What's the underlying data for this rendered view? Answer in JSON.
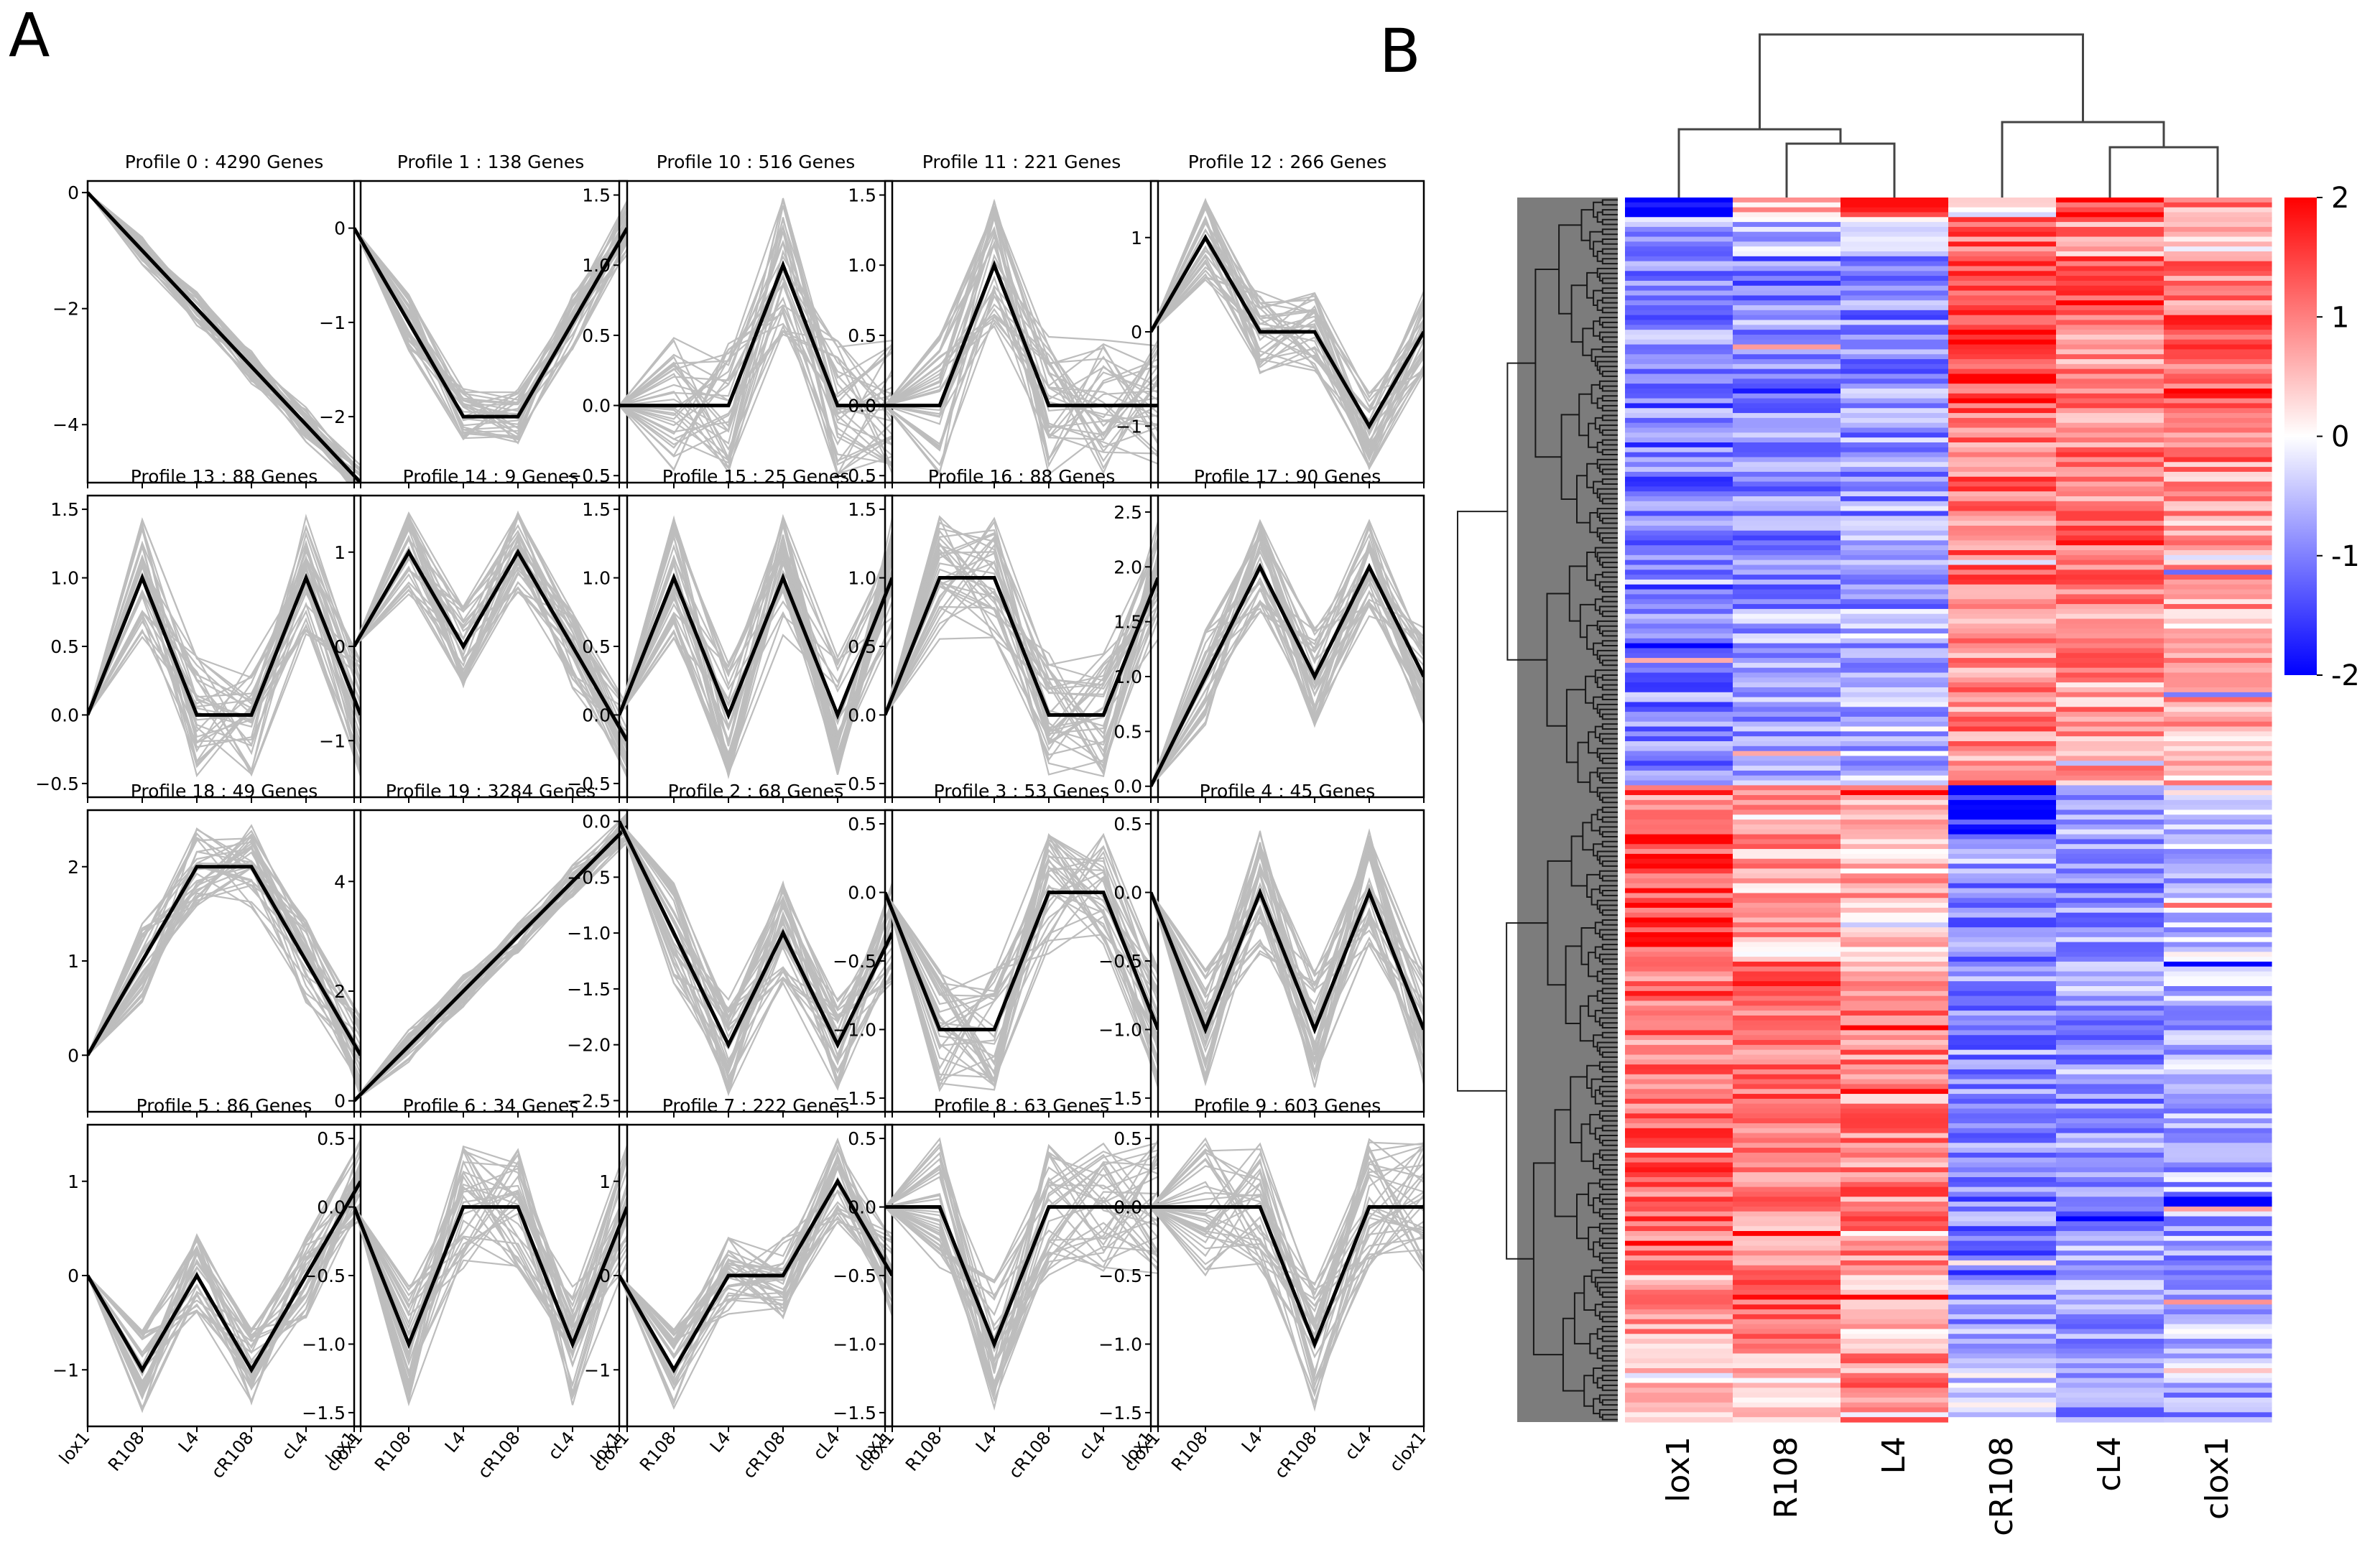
{
  "panel_labels": {
    "a": "A",
    "b": "B"
  },
  "chart_data": [
    {
      "type": "line",
      "panel": "A",
      "x": [
        "lox1",
        "R108",
        "L4",
        "cR108",
        "cL4",
        "clox1"
      ],
      "profiles": [
        {
          "title": "Profile 0 : 4290 Genes",
          "values": [
            0,
            -1,
            -2,
            -3,
            -4,
            -5
          ],
          "ylim": [
            -5,
            0.2
          ],
          "yticks": [
            0,
            -2,
            -4
          ],
          "yticklabels": [
            "0",
            "−2",
            "−4"
          ],
          "spread": 0.3
        },
        {
          "title": "Profile 1 : 138 Genes",
          "values": [
            0,
            -1,
            -2,
            -2,
            -1,
            0
          ],
          "ylim": [
            -2.7,
            0.5
          ],
          "yticks": [
            0,
            -1,
            -2
          ],
          "yticklabels": [
            "0",
            "−1",
            "−2"
          ],
          "spread": 0.3
        },
        {
          "title": "Profile 10 : 516 Genes",
          "values": [
            0,
            0,
            0,
            1,
            0,
            0
          ],
          "ylim": [
            -0.55,
            1.6
          ],
          "yticks": [
            1.5,
            1.0,
            0.5,
            0.0,
            -0.5
          ],
          "yticklabels": [
            "1.5",
            "1.0",
            "0.5",
            "0.0",
            "−0.5"
          ],
          "spread": 0.5
        },
        {
          "title": "Profile 11 : 221 Genes",
          "values": [
            0,
            0,
            1,
            0,
            0,
            0
          ],
          "ylim": [
            -0.55,
            1.6
          ],
          "yticks": [
            1.5,
            1.0,
            0.5,
            0.0,
            -0.5
          ],
          "yticklabels": [
            "1.5",
            "1.0",
            "0.5",
            "0.0",
            "−0.5"
          ],
          "spread": 0.5
        },
        {
          "title": "Profile 12 : 266 Genes",
          "values": [
            0,
            1,
            0,
            0,
            -1,
            0
          ],
          "ylim": [
            -1.6,
            1.6
          ],
          "yticks": [
            1,
            0,
            -1
          ],
          "yticklabels": [
            "1",
            "0",
            "−1"
          ],
          "spread": 0.45
        },
        {
          "title": "Profile 13 : 88 Genes",
          "values": [
            0,
            1,
            0,
            0,
            1,
            0
          ],
          "ylim": [
            -0.6,
            1.6
          ],
          "yticks": [
            1.5,
            1.0,
            0.5,
            0.0,
            -0.5
          ],
          "yticklabels": [
            "1.5",
            "1.0",
            "0.5",
            "0.0",
            "−0.5"
          ],
          "spread": 0.45
        },
        {
          "title": "Profile 14 : 9 Genes",
          "values": [
            0,
            1,
            0,
            1,
            0,
            -1
          ],
          "ylim": [
            -1.6,
            1.6
          ],
          "yticks": [
            1,
            0,
            -1
          ],
          "yticklabels": [
            "1",
            "0",
            "−1"
          ],
          "spread": 0.45
        },
        {
          "title": "Profile 15 : 25 Genes",
          "values": [
            0,
            1,
            0,
            1,
            0,
            1
          ],
          "ylim": [
            -0.6,
            1.6
          ],
          "yticks": [
            1.5,
            1.0,
            0.5,
            0.0,
            -0.5
          ],
          "yticklabels": [
            "1.5",
            "1.0",
            "0.5",
            "0.0",
            "−0.5"
          ],
          "spread": 0.45
        },
        {
          "title": "Profile 16 : 88 Genes",
          "values": [
            0,
            1,
            1,
            0,
            0,
            1
          ],
          "ylim": [
            -0.6,
            1.6
          ],
          "yticks": [
            1.5,
            1.0,
            0.5,
            0.0,
            -0.5
          ],
          "yticklabels": [
            "1.5",
            "1.0",
            "0.5",
            "0.0",
            "−0.5"
          ],
          "spread": 0.45
        },
        {
          "title": "Profile 17 : 90 Genes",
          "values": [
            0,
            1,
            2,
            1,
            2,
            1
          ],
          "ylim": [
            -0.1,
            2.65
          ],
          "yticks": [
            2.5,
            2.0,
            1.5,
            1.0,
            0.5,
            0.0
          ],
          "yticklabels": [
            "2.5",
            "2.0",
            "1.5",
            "1.0",
            "0.5",
            "0.0"
          ],
          "spread": 0.45
        },
        {
          "title": "Profile 18 : 49 Genes",
          "values": [
            0,
            1,
            2,
            2,
            1,
            0
          ],
          "ylim": [
            -0.6,
            2.6
          ],
          "yticks": [
            2,
            1,
            0
          ],
          "yticklabels": [
            "2",
            "1",
            "0"
          ],
          "spread": 0.45
        },
        {
          "title": "Profile 19 : 3284 Genes",
          "values": [
            0,
            1,
            2,
            3,
            4,
            5
          ],
          "ylim": [
            -0.2,
            5.3
          ],
          "yticks": [
            4,
            2,
            0
          ],
          "yticklabels": [
            "4",
            "2",
            "0"
          ],
          "spread": 0.3
        },
        {
          "title": "Profile 2 : 68 Genes",
          "values": [
            0,
            -1,
            -2,
            -1,
            -2,
            -1
          ],
          "ylim": [
            -2.6,
            0.1
          ],
          "yticks": [
            0.0,
            -0.5,
            -1.0,
            -1.5,
            -2.0,
            -2.5
          ],
          "yticklabels": [
            "0.0",
            "−0.5",
            "−1.0",
            "−1.5",
            "−2.0",
            "−2.5"
          ],
          "spread": 0.45
        },
        {
          "title": "Profile 3 : 53 Genes",
          "values": [
            0,
            -1,
            -1,
            0,
            0,
            -1
          ],
          "ylim": [
            -1.6,
            0.6
          ],
          "yticks": [
            0.5,
            0.0,
            -0.5,
            -1.0,
            -1.5
          ],
          "yticklabels": [
            "0.5",
            "0.0",
            "−0.5",
            "−1.0",
            "−1.5"
          ],
          "spread": 0.45
        },
        {
          "title": "Profile 4 : 45 Genes",
          "values": [
            0,
            -1,
            0,
            -1,
            0,
            -1
          ],
          "ylim": [
            -1.6,
            0.6
          ],
          "yticks": [
            0.5,
            0.0,
            -0.5,
            -1.0,
            -1.5
          ],
          "yticklabels": [
            "0.5",
            "0.0",
            "−0.5",
            "−1.0",
            "−1.5"
          ],
          "spread": 0.45
        },
        {
          "title": "Profile 5 : 86 Genes",
          "values": [
            0,
            -1,
            0,
            -1,
            0,
            1
          ],
          "ylim": [
            -1.6,
            1.6
          ],
          "yticks": [
            1,
            0,
            -1
          ],
          "yticklabels": [
            "1",
            "0",
            "−1"
          ],
          "spread": 0.45
        },
        {
          "title": "Profile 6 : 34 Genes",
          "values": [
            0,
            -1,
            0,
            0,
            -1,
            0
          ],
          "ylim": [
            -1.6,
            0.6
          ],
          "yticks": [
            0.5,
            0.0,
            -0.5,
            -1.0,
            -1.5
          ],
          "yticklabels": [
            "0.5",
            "0.0",
            "−0.5",
            "−1.0",
            "−1.5"
          ],
          "spread": 0.45
        },
        {
          "title": "Profile 7 : 222 Genes",
          "values": [
            0,
            -1,
            0,
            0,
            1,
            0
          ],
          "ylim": [
            -1.6,
            1.6
          ],
          "yticks": [
            1,
            0,
            -1
          ],
          "yticklabels": [
            "1",
            "0",
            "−1"
          ],
          "spread": 0.45
        },
        {
          "title": "Profile 8 : 63 Genes",
          "values": [
            0,
            0,
            -1,
            0,
            0,
            0
          ],
          "ylim": [
            -1.6,
            0.6
          ],
          "yticks": [
            0.5,
            0.0,
            -0.5,
            -1.0,
            -1.5
          ],
          "yticklabels": [
            "0.5",
            "0.0",
            "−0.5",
            "−1.0",
            "−1.5"
          ],
          "spread": 0.5
        },
        {
          "title": "Profile 9 : 603 Genes",
          "values": [
            0,
            0,
            0,
            -1,
            0,
            0
          ],
          "ylim": [
            -1.6,
            0.6
          ],
          "yticks": [
            0.5,
            0.0,
            -0.5,
            -1.0,
            -1.5
          ],
          "yticklabels": [
            "0.5",
            "0.0",
            "−0.5",
            "−1.0",
            "−1.5"
          ],
          "spread": 0.5
        }
      ]
    },
    {
      "type": "heatmap",
      "panel": "B",
      "columns": [
        "lox1",
        "R108",
        "L4",
        "cR108",
        "cL4",
        "clox1"
      ],
      "colorbar": {
        "ticks": [
          2,
          1,
          0,
          -1,
          -2
        ],
        "ticklabels": [
          "2",
          "1",
          "0",
          "-1",
          "-2"
        ],
        "range": [
          -2,
          2
        ],
        "low_color": "#0000ff",
        "mid_color": "#ffffff",
        "high_color": "#ff0000"
      },
      "row_blocks": [
        {
          "rows": 4,
          "values": [
            -2.0,
            0.6,
            1.8,
            0.3,
            1.5,
            0.8
          ]
        },
        {
          "rows": 8,
          "values": [
            -0.8,
            -0.6,
            -0.4,
            1.2,
            0.8,
            0.3
          ]
        },
        {
          "rows": 10,
          "values": [
            -0.9,
            -1.0,
            -0.8,
            1.4,
            1.6,
            0.9
          ]
        },
        {
          "rows": 22,
          "values": [
            -0.9,
            -0.8,
            -0.9,
            1.5,
            0.9,
            1.2
          ]
        },
        {
          "rows": 40,
          "values": [
            -1.1,
            -0.9,
            -0.8,
            1.1,
            1.0,
            0.8
          ]
        },
        {
          "rows": 36,
          "values": [
            -1.0,
            -0.7,
            -0.6,
            0.9,
            0.8,
            0.6
          ]
        },
        {
          "rows": 10,
          "values": [
            1.0,
            0.6,
            0.5,
            -1.8,
            -0.6,
            -0.3
          ]
        },
        {
          "rows": 26,
          "values": [
            1.5,
            0.7,
            0.6,
            -1.0,
            -0.9,
            -0.5
          ]
        },
        {
          "rows": 30,
          "values": [
            1.0,
            1.2,
            0.9,
            -0.9,
            -0.8,
            -0.6
          ]
        },
        {
          "rows": 34,
          "values": [
            1.2,
            0.9,
            1.0,
            -1.0,
            -0.8,
            -0.7
          ]
        },
        {
          "rows": 16,
          "values": [
            0.7,
            1.4,
            0.6,
            -0.8,
            -0.7,
            -0.6
          ]
        },
        {
          "rows": 14,
          "values": [
            0.3,
            0.4,
            0.9,
            -0.3,
            -0.9,
            -0.7
          ]
        }
      ]
    }
  ]
}
